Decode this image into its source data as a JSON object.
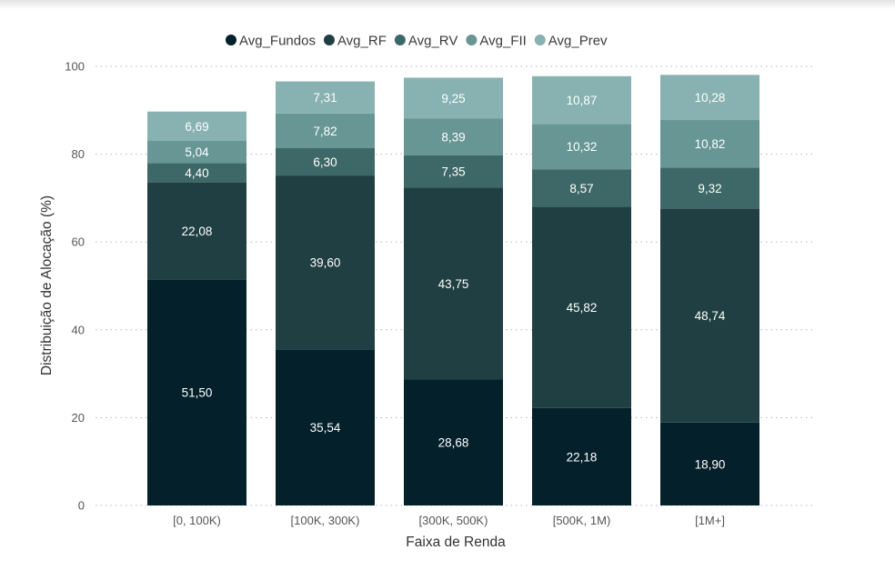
{
  "chart_data": {
    "type": "bar",
    "stacked": true,
    "title": "",
    "xlabel": "Faixa de Renda",
    "ylabel": "Distribuição de Alocação (%)",
    "ylim": [
      0,
      100
    ],
    "yticks": [
      0,
      20,
      40,
      60,
      80,
      100
    ],
    "grid": true,
    "legend_position": "top",
    "categories": [
      "[0, 100K)",
      "[100K, 300K)",
      "[300K, 500K)",
      "[500K, 1M)",
      "[1M+]"
    ],
    "series": [
      {
        "name": "Avg_Fundos",
        "color": "#03202b",
        "label_color": "#ffffff",
        "values": [
          51.5,
          35.54,
          28.68,
          22.18,
          18.9
        ],
        "labels": [
          "51,50",
          "35,54",
          "28,68",
          "22,18",
          "18,90"
        ]
      },
      {
        "name": "Avg_RF",
        "color": "#203f43",
        "label_color": "#ffffff",
        "values": [
          22.08,
          39.6,
          43.75,
          45.82,
          48.74
        ],
        "labels": [
          "22,08",
          "39,60",
          "43,75",
          "45,82",
          "48,74"
        ]
      },
      {
        "name": "Avg_RV",
        "color": "#3e6867",
        "label_color": "#ffffff",
        "values": [
          4.4,
          6.3,
          7.35,
          8.57,
          9.32
        ],
        "labels": [
          "4,40",
          "6,30",
          "7,35",
          "8,57",
          "9,32"
        ]
      },
      {
        "name": "Avg_FII",
        "color": "#679695",
        "label_color": "#ffffff",
        "values": [
          5.04,
          7.82,
          8.39,
          10.32,
          10.82
        ],
        "labels": [
          "5,04",
          "7,82",
          "8,39",
          "10,32",
          "10,82"
        ]
      },
      {
        "name": "Avg_Prev",
        "color": "#87b2b1",
        "label_color": "#ffffff",
        "values": [
          6.69,
          7.31,
          9.25,
          10.87,
          10.28
        ],
        "labels": [
          "6,69",
          "7,31",
          "9,25",
          "10,87",
          "10,28"
        ]
      }
    ]
  }
}
